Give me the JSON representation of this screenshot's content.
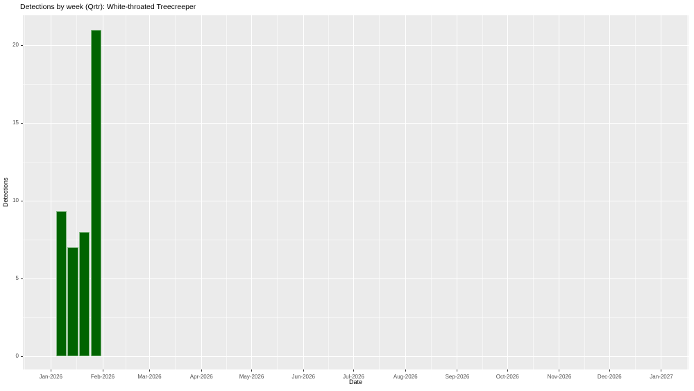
{
  "chart_data": {
    "type": "bar",
    "title": "Detections by week (Qrtr): White-throated Treecreeper",
    "xlabel": "Date",
    "ylabel": "Detections",
    "x_tick_labels": [
      "Jan-2026",
      "Feb-2026",
      "Mar-2026",
      "Apr-2026",
      "May-2026",
      "Jun-2026",
      "Jul-2026",
      "Aug-2026",
      "Sep-2026",
      "Oct-2026",
      "Nov-2026",
      "Dec-2026",
      "Jan-2027"
    ],
    "y_ticks": [
      0,
      5,
      10,
      15,
      20
    ],
    "ylim": [
      0,
      21
    ],
    "grid": true,
    "legend": false,
    "series_name": "Detections",
    "categories": [
      "2026-01-04",
      "2026-01-11",
      "2026-01-18",
      "2026-01-25"
    ],
    "values": [
      9.33,
      7,
      8,
      21
    ],
    "colors": {
      "bar_fill": "#006400",
      "bar_border": "#85bb85",
      "panel_bg": "#EBEBEB",
      "gridline": "#FFFFFF",
      "tick_text": "#4D4D4D",
      "title_text": "#000000",
      "figure_bg": "#FFFFFF"
    }
  }
}
